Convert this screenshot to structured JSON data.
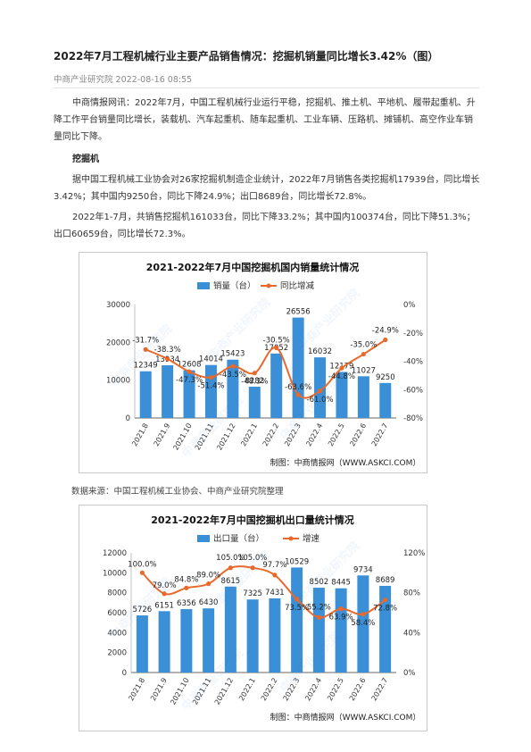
{
  "article": {
    "title": "2022年7月工程机械行业主要产品销售情况：挖掘机销量同比增长3.42%（图）",
    "source": "中商产业研究院",
    "datetime": "2022-08-16 08:55",
    "para1": "中商情报网讯：2022年7月，中国工程机械行业运行平稳，挖掘机、推土机、平地机、履带起重机、升降工作平台销量同比增长，装载机、汽车起重机、随车起重机、工业车辆、压路机、摊铺机、高空作业车销量同比下降。",
    "section": "挖掘机",
    "para2": "据中国工程机械工业协会对26家挖掘机制造企业统计，2022年7月销售各类挖掘机17939台，同比增长3.42%；其中国内9250台，同比下降24.9%；出口8689台，同比增长72.8%。",
    "para3": "2022年1-7月，共销售挖掘机161033台，同比下降33.2%；其中国内100374台，同比下降51.3%；出口60659台，同比增长72.3%。",
    "data_source": "数据来源：中国工程机械工业协会、中商产业研究院整理"
  },
  "watermark": "中商产业研究院",
  "chart_data": [
    {
      "type": "bar",
      "title": "2021-2022年7月中国挖掘机国内销量统计情况",
      "categories": [
        "2021.8",
        "2021.9",
        "2021.10",
        "2021.11",
        "2021.12",
        "2022.1",
        "2022.2",
        "2022.3",
        "2022.4",
        "2022.5",
        "2022.6",
        "2022.7"
      ],
      "series": [
        {
          "name": "销量（台）",
          "kind": "bar",
          "axis": "left",
          "color": "#3b8fd6",
          "values": [
            12349,
            13934,
            12608,
            14014,
            15423,
            8282,
            17052,
            26556,
            16032,
            12179,
            11027,
            9250
          ],
          "labels": [
            "12349",
            "13934",
            "12608",
            "14014",
            "15423",
            "8282",
            "17052",
            "26556",
            "16032",
            "12179",
            "11027",
            "9250"
          ]
        },
        {
          "name": "同比增减",
          "kind": "line",
          "axis": "right",
          "color": "#e8692b",
          "values": [
            -31.7,
            -38.3,
            -47.3,
            -51.4,
            -43.5,
            -48.3,
            -30.5,
            -63.6,
            -61.0,
            -44.8,
            -35.0,
            -24.9
          ],
          "labels": [
            "-31.7%",
            "-38.3%",
            "-47.3%",
            "-51.4%",
            "-43.5%",
            "-48.3%",
            "-30.5%",
            "-63.6%",
            "-61.0%",
            "-44.8%",
            "-35.0%",
            "-24.9%"
          ]
        }
      ],
      "ylim": [
        0,
        30000
      ],
      "yticks": [
        "0",
        "10000",
        "20000",
        "30000"
      ],
      "y2lim": [
        -80,
        0
      ],
      "y2ticks": [
        "0%",
        "-20%",
        "-40%",
        "-60%",
        "-80%"
      ],
      "legend": "top",
      "credit": "制图：中商情报网（WWW.ASKCI.COM）"
    },
    {
      "type": "bar",
      "title": "2021-2022年7月中国挖掘机出口量统计情况",
      "categories": [
        "2021.8",
        "2021.9",
        "2021.10",
        "2021.11",
        "2021.12",
        "2022.1",
        "2022.2",
        "2022.3",
        "2022.4",
        "2022.5",
        "2022.6",
        "2022.7"
      ],
      "series": [
        {
          "name": "出口量（台）",
          "kind": "bar",
          "axis": "left",
          "color": "#3b8fd6",
          "values": [
            5726,
            6151,
            6356,
            6430,
            8615,
            7325,
            7431,
            10529,
            8502,
            8445,
            9734,
            8689
          ],
          "labels": [
            "5726",
            "6151",
            "6356",
            "6430",
            "8615",
            "7325",
            "7431",
            "10529",
            "8502",
            "8445",
            "9734",
            "8689"
          ]
        },
        {
          "name": "增速",
          "kind": "line",
          "axis": "right",
          "color": "#e8692b",
          "values": [
            100.0,
            79.0,
            84.8,
            89.0,
            105.0,
            105.0,
            97.7,
            73.5,
            55.2,
            63.9,
            58.4,
            72.8
          ],
          "labels": [
            "100.0%",
            "79.0%",
            "84.8%",
            "89.0%",
            "105.0%",
            "105.0%",
            "97.7%",
            "73.5%",
            "55.2%",
            "63.9%",
            "58.4%",
            "72.8%"
          ]
        }
      ],
      "ylim": [
        0,
        12000
      ],
      "yticks": [
        "0",
        "2000",
        "4000",
        "6000",
        "8000",
        "10000",
        "12000"
      ],
      "y2lim": [
        0,
        120
      ],
      "y2ticks": [
        "0%",
        "40%",
        "80%",
        "120%"
      ],
      "legend": "top",
      "credit": "制图：中商情报网（WWW.ASKCI.COM）"
    }
  ]
}
